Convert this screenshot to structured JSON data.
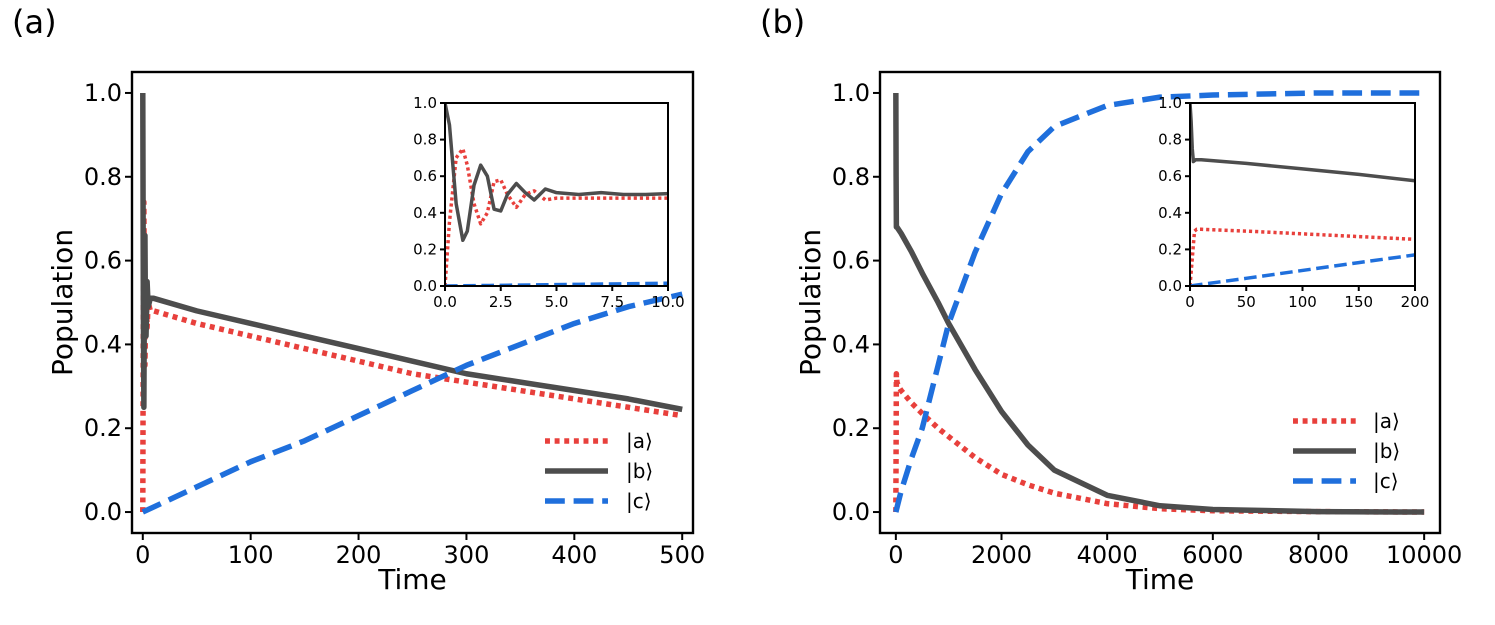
{
  "chart_data": [
    {
      "panel_label": "(a)",
      "type": "line",
      "xlabel": "Time",
      "ylabel": "Population",
      "xlim": [
        -10,
        510
      ],
      "ylim": [
        -0.05,
        1.05
      ],
      "xticks": [
        0,
        100,
        200,
        300,
        400,
        500
      ],
      "xtick_labels": [
        "0",
        "100",
        "200",
        "300",
        "400",
        "500"
      ],
      "yticks": [
        0.0,
        0.2,
        0.4,
        0.6,
        0.8,
        1.0
      ],
      "ytick_labels": [
        "0.0",
        "0.2",
        "0.4",
        "0.6",
        "0.8",
        "1.0"
      ],
      "legend": {
        "location": "lower-right",
        "entries": [
          "|a⟩",
          "|b⟩",
          "|c⟩"
        ]
      },
      "series": [
        {
          "name": "|a⟩",
          "color": "#e8403c",
          "style": "dotted",
          "x": [
            0,
            0.5,
            1,
            1.5,
            2,
            2.5,
            3,
            4,
            5,
            7,
            10,
            50,
            100,
            150,
            200,
            250,
            300,
            350,
            400,
            450,
            500
          ],
          "y": [
            0.0,
            0.5,
            0.74,
            0.5,
            0.35,
            0.45,
            0.52,
            0.44,
            0.5,
            0.48,
            0.48,
            0.45,
            0.42,
            0.39,
            0.36,
            0.33,
            0.31,
            0.29,
            0.27,
            0.25,
            0.23
          ]
        },
        {
          "name": "|b⟩",
          "color": "#4d4d4d",
          "style": "solid",
          "x": [
            0,
            0.5,
            1,
            1.5,
            2,
            2.5,
            3,
            4,
            5,
            7,
            10,
            50,
            100,
            150,
            200,
            250,
            300,
            350,
            400,
            450,
            500
          ],
          "y": [
            1.0,
            0.5,
            0.25,
            0.55,
            0.66,
            0.45,
            0.42,
            0.55,
            0.49,
            0.51,
            0.51,
            0.48,
            0.45,
            0.42,
            0.39,
            0.36,
            0.33,
            0.31,
            0.29,
            0.27,
            0.245
          ]
        },
        {
          "name": "|c⟩",
          "color": "#1f6fdc",
          "style": "dashed",
          "x": [
            0,
            50,
            100,
            150,
            200,
            250,
            300,
            350,
            400,
            450,
            500
          ],
          "y": [
            0.0,
            0.06,
            0.12,
            0.17,
            0.23,
            0.29,
            0.35,
            0.4,
            0.45,
            0.49,
            0.52
          ]
        }
      ],
      "inset": {
        "xlim": [
          0,
          10
        ],
        "ylim": [
          0,
          1.0
        ],
        "xticks": [
          0,
          2.5,
          5,
          7.5,
          10
        ],
        "xtick_labels": [
          "0.0",
          "2.5",
          "5.0",
          "7.5",
          "10.0"
        ],
        "yticks": [
          0,
          0.2,
          0.4,
          0.6,
          0.8,
          1.0
        ],
        "ytick_labels": [
          "0.0",
          "0.2",
          "0.4",
          "0.6",
          "0.8",
          "1.0"
        ],
        "series": [
          {
            "name": "|a⟩",
            "color": "#e8403c",
            "style": "dotted",
            "x": [
              0,
              0.2,
              0.5,
              0.8,
              1.0,
              1.3,
              1.6,
              1.9,
              2.2,
              2.5,
              2.8,
              3.2,
              3.6,
              4.0,
              4.5,
              5.0,
              6,
              7,
              8,
              9,
              10
            ],
            "y": [
              0.0,
              0.35,
              0.7,
              0.75,
              0.66,
              0.45,
              0.34,
              0.4,
              0.57,
              0.58,
              0.5,
              0.43,
              0.5,
              0.52,
              0.47,
              0.48,
              0.48,
              0.48,
              0.48,
              0.48,
              0.48
            ]
          },
          {
            "name": "|b⟩",
            "color": "#4d4d4d",
            "style": "solid",
            "x": [
              0,
              0.2,
              0.5,
              0.8,
              1.0,
              1.3,
              1.6,
              1.9,
              2.2,
              2.5,
              2.8,
              3.2,
              3.6,
              4.0,
              4.5,
              5.0,
              6,
              7,
              8,
              9,
              10
            ],
            "y": [
              1.0,
              0.88,
              0.45,
              0.25,
              0.3,
              0.55,
              0.66,
              0.6,
              0.42,
              0.41,
              0.5,
              0.56,
              0.51,
              0.47,
              0.53,
              0.51,
              0.5,
              0.51,
              0.5,
              0.5,
              0.505
            ]
          },
          {
            "name": "|c⟩",
            "color": "#1f6fdc",
            "style": "dashed",
            "x": [
              0,
              2,
              4,
              6,
              8,
              10
            ],
            "y": [
              0.0,
              0.003,
              0.006,
              0.009,
              0.012,
              0.015
            ]
          }
        ]
      }
    },
    {
      "panel_label": "(b)",
      "type": "line",
      "xlabel": "Time",
      "ylabel": "Population",
      "xlim": [
        -300,
        10300
      ],
      "ylim": [
        -0.05,
        1.05
      ],
      "xticks": [
        0,
        2000,
        4000,
        6000,
        8000,
        10000
      ],
      "xtick_labels": [
        "0",
        "2000",
        "4000",
        "6000",
        "8000",
        "10000"
      ],
      "yticks": [
        0.0,
        0.2,
        0.4,
        0.6,
        0.8,
        1.0
      ],
      "ytick_labels": [
        "0.0",
        "0.2",
        "0.4",
        "0.6",
        "0.8",
        "1.0"
      ],
      "legend": {
        "location": "lower-right",
        "entries": [
          "|a⟩",
          "|b⟩",
          "|c⟩"
        ]
      },
      "series": [
        {
          "name": "|a⟩",
          "color": "#e8403c",
          "style": "dotted",
          "x": [
            0,
            10,
            20,
            50,
            100,
            300,
            500,
            800,
            1000,
            1500,
            2000,
            2500,
            3000,
            4000,
            5000,
            6000,
            8000,
            10000
          ],
          "y": [
            0.0,
            0.33,
            0.31,
            0.3,
            0.29,
            0.26,
            0.235,
            0.2,
            0.18,
            0.13,
            0.09,
            0.065,
            0.045,
            0.02,
            0.008,
            0.003,
            0.001,
            0.0
          ]
        },
        {
          "name": "|b⟩",
          "color": "#4d4d4d",
          "style": "solid",
          "x": [
            0,
            5,
            10,
            20,
            100,
            300,
            500,
            800,
            1000,
            1500,
            2000,
            2500,
            3000,
            4000,
            5000,
            6000,
            8000,
            10000
          ],
          "y": [
            1.0,
            0.8,
            0.68,
            0.68,
            0.665,
            0.62,
            0.57,
            0.5,
            0.45,
            0.34,
            0.24,
            0.16,
            0.1,
            0.04,
            0.015,
            0.006,
            0.001,
            0.0
          ]
        },
        {
          "name": "|c⟩",
          "color": "#1f6fdc",
          "style": "dashed",
          "x": [
            0,
            100,
            300,
            500,
            800,
            1000,
            1500,
            2000,
            2500,
            3000,
            4000,
            5000,
            6000,
            8000,
            10000
          ],
          "y": [
            0.0,
            0.05,
            0.13,
            0.2,
            0.35,
            0.45,
            0.62,
            0.76,
            0.86,
            0.92,
            0.97,
            0.99,
            0.995,
            1.0,
            1.0
          ]
        }
      ],
      "inset": {
        "xlim": [
          0,
          200
        ],
        "ylim": [
          0,
          1.0
        ],
        "xticks": [
          0,
          50,
          100,
          150,
          200
        ],
        "xtick_labels": [
          "0",
          "50",
          "100",
          "150",
          "200"
        ],
        "yticks": [
          0,
          0.2,
          0.4,
          0.6,
          0.8,
          1.0
        ],
        "ytick_labels": [
          "0.0",
          "0.2",
          "0.4",
          "0.6",
          "0.8",
          "1.0"
        ],
        "series": [
          {
            "name": "|a⟩",
            "color": "#e8403c",
            "style": "dotted",
            "x": [
              0,
              2,
              4,
              6,
              10,
              50,
              100,
              150,
              200
            ],
            "y": [
              0.0,
              0.15,
              0.3,
              0.31,
              0.31,
              0.3,
              0.285,
              0.27,
              0.255
            ]
          },
          {
            "name": "|b⟩",
            "color": "#4d4d4d",
            "style": "solid",
            "x": [
              0,
              1,
              2,
              3,
              5,
              10,
              50,
              100,
              150,
              200
            ],
            "y": [
              1.0,
              0.9,
              0.75,
              0.68,
              0.69,
              0.69,
              0.67,
              0.64,
              0.61,
              0.575
            ]
          },
          {
            "name": "|c⟩",
            "color": "#1f6fdc",
            "style": "dashed",
            "x": [
              0,
              50,
              100,
              150,
              200
            ],
            "y": [
              0.0,
              0.042,
              0.085,
              0.128,
              0.17
            ]
          }
        ]
      }
    }
  ]
}
